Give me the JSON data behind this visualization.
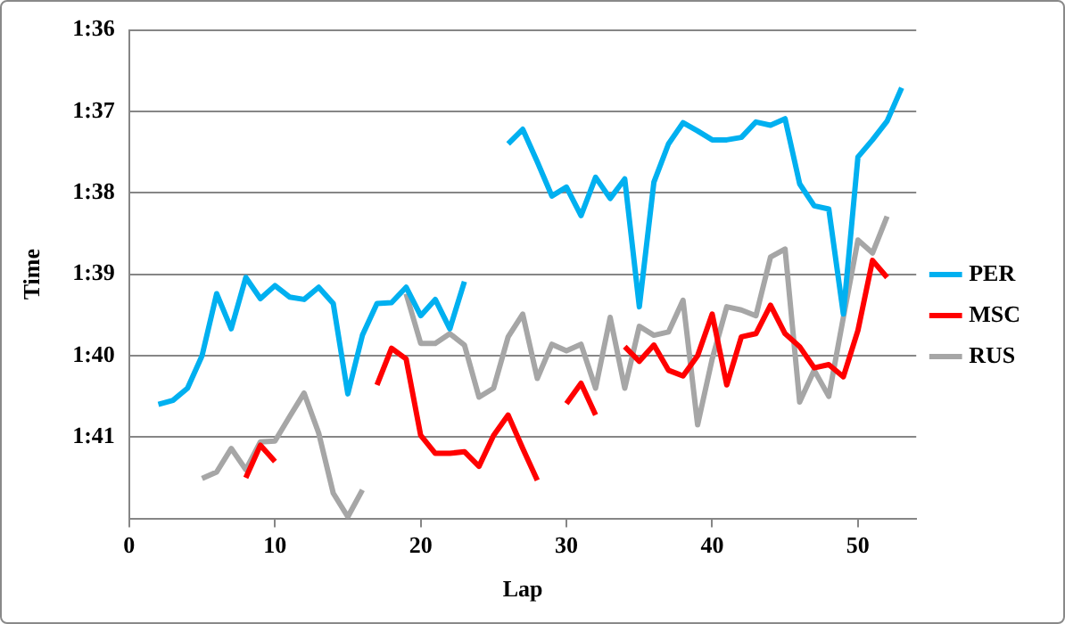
{
  "chart_data": {
    "type": "line",
    "xlabel": "Lap",
    "ylabel": "Time",
    "x": [
      2,
      3,
      4,
      5,
      6,
      7,
      8,
      9,
      10,
      11,
      12,
      13,
      14,
      15,
      16,
      17,
      18,
      19,
      20,
      21,
      22,
      23,
      24,
      25,
      26,
      27,
      28,
      29,
      30,
      31,
      32,
      33,
      34,
      35,
      36,
      37,
      38,
      39,
      40,
      41,
      42,
      43,
      44,
      45,
      46,
      47,
      48,
      49,
      50,
      51,
      52,
      53
    ],
    "series": [
      {
        "name": "PER",
        "color": "#00b0f0",
        "values": [
          100.6,
          100.55,
          100.4,
          100.0,
          99.24,
          99.67,
          99.04,
          99.3,
          99.14,
          99.28,
          99.31,
          99.16,
          99.36,
          100.47,
          99.75,
          99.36,
          99.35,
          99.16,
          99.51,
          99.31,
          99.67,
          99.09,
          null,
          null,
          97.4,
          97.22,
          97.62,
          98.04,
          97.93,
          98.28,
          97.81,
          98.07,
          97.83,
          99.4,
          97.87,
          97.4,
          97.14,
          97.24,
          97.35,
          97.35,
          97.32,
          97.13,
          97.17,
          97.09,
          97.89,
          98.16,
          98.2,
          99.49,
          97.56,
          97.35,
          97.12,
          96.71
        ]
      },
      {
        "name": "MSC",
        "color": "#ff0000",
        "values": [
          null,
          null,
          null,
          null,
          null,
          null,
          101.5,
          101.1,
          101.3,
          null,
          null,
          null,
          null,
          null,
          null,
          100.36,
          99.91,
          100.04,
          100.98,
          101.2,
          101.2,
          101.18,
          101.36,
          100.98,
          100.73,
          101.14,
          101.53,
          null,
          100.59,
          100.34,
          100.73,
          null,
          99.89,
          100.07,
          99.87,
          100.18,
          100.25,
          100.0,
          99.49,
          100.36,
          99.77,
          99.73,
          99.38,
          99.73,
          99.89,
          100.15,
          100.11,
          100.26,
          99.69,
          98.83,
          99.04,
          null
        ]
      },
      {
        "name": "RUS",
        "color": "#a6a6a6",
        "values": [
          null,
          null,
          null,
          101.51,
          101.43,
          101.14,
          101.4,
          101.06,
          101.05,
          100.75,
          100.46,
          100.95,
          101.69,
          101.98,
          101.65,
          null,
          null,
          99.24,
          99.85,
          99.85,
          99.73,
          99.87,
          100.51,
          100.4,
          99.77,
          99.49,
          100.28,
          99.86,
          99.94,
          99.86,
          100.4,
          99.53,
          100.4,
          99.64,
          99.75,
          99.71,
          99.32,
          100.85,
          100.04,
          99.4,
          99.44,
          99.51,
          98.79,
          98.69,
          100.57,
          100.18,
          100.5,
          99.53,
          98.58,
          98.74,
          98.29,
          null
        ]
      }
    ],
    "xlim": [
      0,
      54
    ],
    "xticks": [
      0,
      10,
      20,
      30,
      40,
      50
    ],
    "ylim": [
      102,
      96
    ],
    "yticks": [
      {
        "value": 96,
        "label": "1:36"
      },
      {
        "value": 97,
        "label": "1:37"
      },
      {
        "value": 98,
        "label": "1:38"
      },
      {
        "value": 99,
        "label": "1:39"
      },
      {
        "value": 100,
        "label": "1:40"
      },
      {
        "value": 101,
        "label": "1:41"
      },
      {
        "value": 102,
        "label": null
      }
    ],
    "grid": "y",
    "legend": "right",
    "marker": "none",
    "line_style": "solid"
  }
}
